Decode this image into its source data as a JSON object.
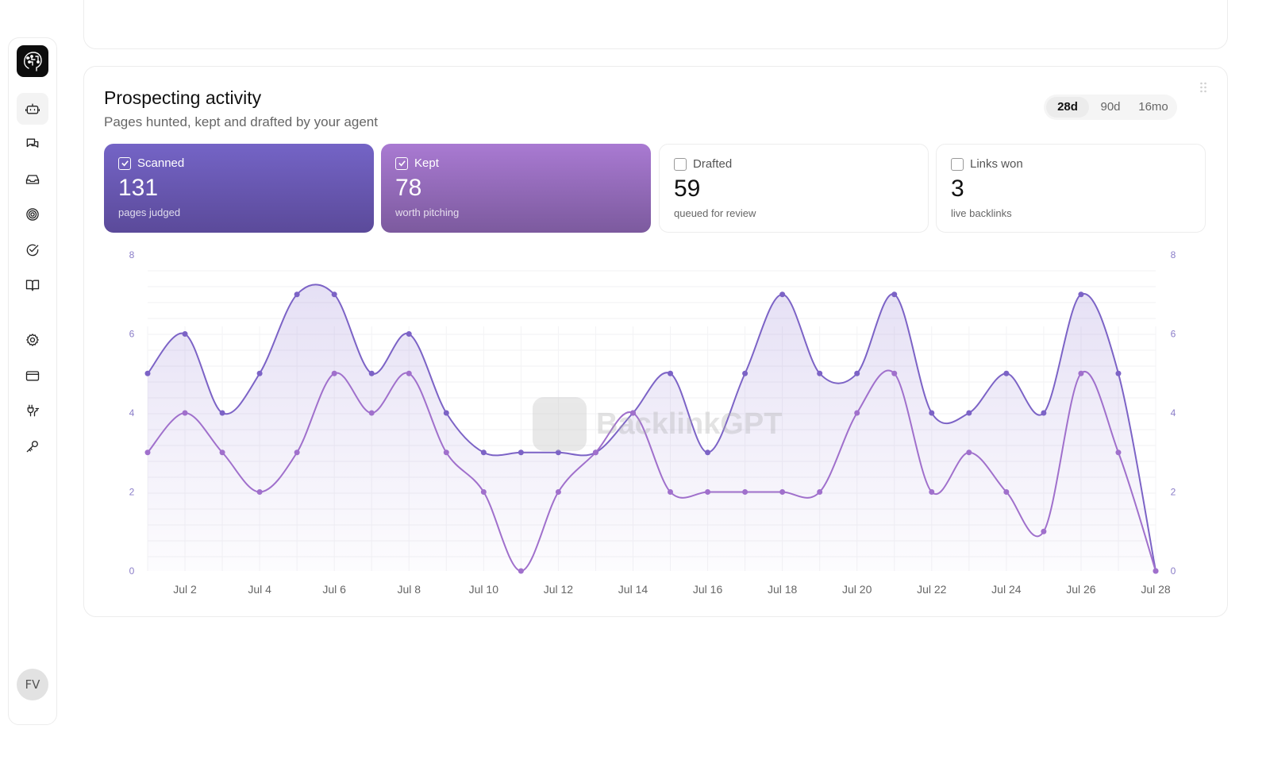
{
  "sidebar": {
    "logo": "brain-logo",
    "items": [
      {
        "icon": "bot-icon",
        "active": true
      },
      {
        "icon": "chat-icon",
        "active": false
      },
      {
        "icon": "inbox-icon",
        "active": false
      },
      {
        "icon": "target-icon",
        "active": false
      },
      {
        "icon": "check-circle-icon",
        "active": false
      },
      {
        "icon": "book-icon",
        "active": false
      },
      {
        "icon": "gear-icon",
        "active": false
      },
      {
        "icon": "credit-card-icon",
        "active": false
      },
      {
        "icon": "plugs-icon",
        "active": false
      },
      {
        "icon": "key-icon",
        "active": false
      }
    ],
    "avatar": "FV"
  },
  "card": {
    "title": "Prospecting activity",
    "subtitle": "Pages hunted, kept and drafted by your agent",
    "ranges": [
      "28d",
      "90d",
      "16mo"
    ],
    "active_range": "28d"
  },
  "stats": [
    {
      "label": "Scanned",
      "value": "131",
      "sub": "pages judged",
      "checked": true,
      "color": "#6a54b4"
    },
    {
      "label": "Kept",
      "value": "78",
      "sub": "worth pitching",
      "checked": true,
      "color": "#9366c4"
    },
    {
      "label": "Drafted",
      "value": "59",
      "sub": "queued for review",
      "checked": false
    },
    {
      "label": "Links won",
      "value": "3",
      "sub": "live backlinks",
      "checked": false
    }
  ],
  "watermark": "BacklinkGPT",
  "chart_data": {
    "type": "line",
    "x": [
      "Jul 1",
      "Jul 2",
      "Jul 3",
      "Jul 4",
      "Jul 5",
      "Jul 6",
      "Jul 7",
      "Jul 8",
      "Jul 9",
      "Jul 10",
      "Jul 11",
      "Jul 12",
      "Jul 13",
      "Jul 14",
      "Jul 15",
      "Jul 16",
      "Jul 17",
      "Jul 18",
      "Jul 19",
      "Jul 20",
      "Jul 21",
      "Jul 22",
      "Jul 23",
      "Jul 24",
      "Jul 25",
      "Jul 26",
      "Jul 27",
      "Jul 28"
    ],
    "x_tick_labels": [
      "Jul 2",
      "Jul 4",
      "Jul 6",
      "Jul 8",
      "Jul 10",
      "Jul 12",
      "Jul 14",
      "Jul 16",
      "Jul 18",
      "Jul 20",
      "Jul 22",
      "Jul 24",
      "Jul 26",
      "Jul 28"
    ],
    "ylim": [
      0,
      8
    ],
    "y_ticks": [
      0,
      2,
      4,
      6,
      8
    ],
    "y_tick_labels_both_sides": true,
    "grid": true,
    "series": [
      {
        "key": "scanned",
        "color": "#7c63c6",
        "filled": true,
        "values": [
          5,
          6,
          4,
          5,
          7,
          7,
          5,
          6,
          4,
          3,
          3,
          3,
          3,
          4,
          5,
          3,
          5,
          7,
          5,
          5,
          7,
          4,
          4,
          5,
          4,
          7,
          5,
          0
        ]
      },
      {
        "key": "kept",
        "color": "#a070cc",
        "filled": false,
        "values": [
          3,
          4,
          3,
          2,
          3,
          5,
          4,
          5,
          3,
          2,
          0,
          2,
          3,
          4,
          2,
          2,
          2,
          2,
          2,
          4,
          5,
          2,
          3,
          2,
          1,
          5,
          3,
          0
        ]
      }
    ]
  }
}
